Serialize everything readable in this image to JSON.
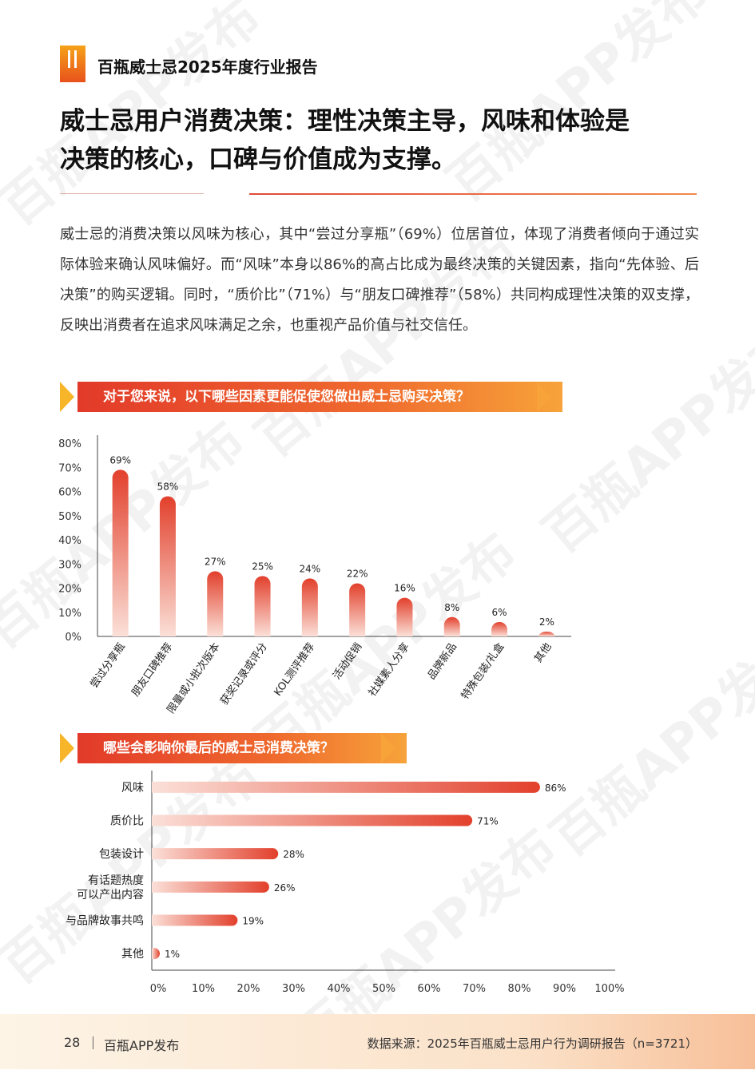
{
  "header": {
    "report_title": "百瓶威士忌2025年度行业报告",
    "headline_line1": "威士忌用户消费决策：理性决策主导，风味和体验是",
    "headline_line2": "决策的核心，口碑与价值成为支撑。"
  },
  "body_paragraph": "威士忌的消费决策以风味为核心，其中“尝过分享瓶”（69%）位居首位，体现了消费者倾向于通过实际体验来确认风味偏好。而“风味”本身以86%的高占比成为最终决策的关键因素，指向“先体验、后决策”的购买逻辑。同时，“质价比”（71%）与“朋友口碑推荐”（58%）共同构成理性决策的双支撑，反映出消费者在追求风味满足之余，也重视产品价值与社交信任。",
  "watermark_text": "百瓶APP发布",
  "colors": {
    "accent": "#e8452e",
    "bar_top": "#e2402c",
    "bar_bottom": "#fbe0d8",
    "banner_start": "#e23a2a",
    "banner_end": "#f7a33a"
  },
  "chart_data": [
    {
      "type": "bar",
      "title": "对于您来说，以下哪些因素更能促使您做出威士忌购买决策？",
      "categories": [
        "尝过分享瓶",
        "朋友口碑推荐",
        "限量或小批次版本",
        "获奖记录或评分",
        "KOL测评推荐",
        "活动促销",
        "社媒素人分享",
        "品牌新品",
        "特殊包装/礼盒",
        "其他"
      ],
      "values": [
        69,
        58,
        27,
        25,
        24,
        22,
        16,
        8,
        6,
        2
      ],
      "value_labels": [
        "69%",
        "58%",
        "27%",
        "25%",
        "24%",
        "22%",
        "16%",
        "8%",
        "6%",
        "2%"
      ],
      "yticks": [
        "0%",
        "10%",
        "20%",
        "30%",
        "40%",
        "50%",
        "60%",
        "70%",
        "80%"
      ],
      "ylim": [
        0,
        80
      ],
      "grid": false
    },
    {
      "type": "bar",
      "orientation": "horizontal",
      "title": "哪些会影响你最后的威士忌消费决策？",
      "categories": [
        "风味",
        "质价比",
        "包装设计",
        "有话题热度可以产出内容",
        "与品牌故事共鸣",
        "其他"
      ],
      "category_lines": [
        [
          "风味"
        ],
        [
          "质价比"
        ],
        [
          "包装设计"
        ],
        [
          "有话题热度",
          "可以产出内容"
        ],
        [
          "与品牌故事共鸣"
        ],
        [
          "其他"
        ]
      ],
      "values": [
        86,
        71,
        28,
        26,
        19,
        1
      ],
      "value_labels": [
        "86%",
        "71%",
        "28%",
        "26%",
        "19%",
        "1%"
      ],
      "xticks": [
        "0%",
        "10%",
        "20%",
        "30%",
        "40%",
        "50%",
        "60%",
        "70%",
        "80%",
        "90%",
        "100%"
      ],
      "xlim": [
        0,
        100
      ],
      "grid": false
    }
  ],
  "footer": {
    "page_number": "28",
    "brand": "百瓶APP发布",
    "source": "数据来源：2025年百瓶威士忌用户行为调研报告（n=3721）"
  }
}
